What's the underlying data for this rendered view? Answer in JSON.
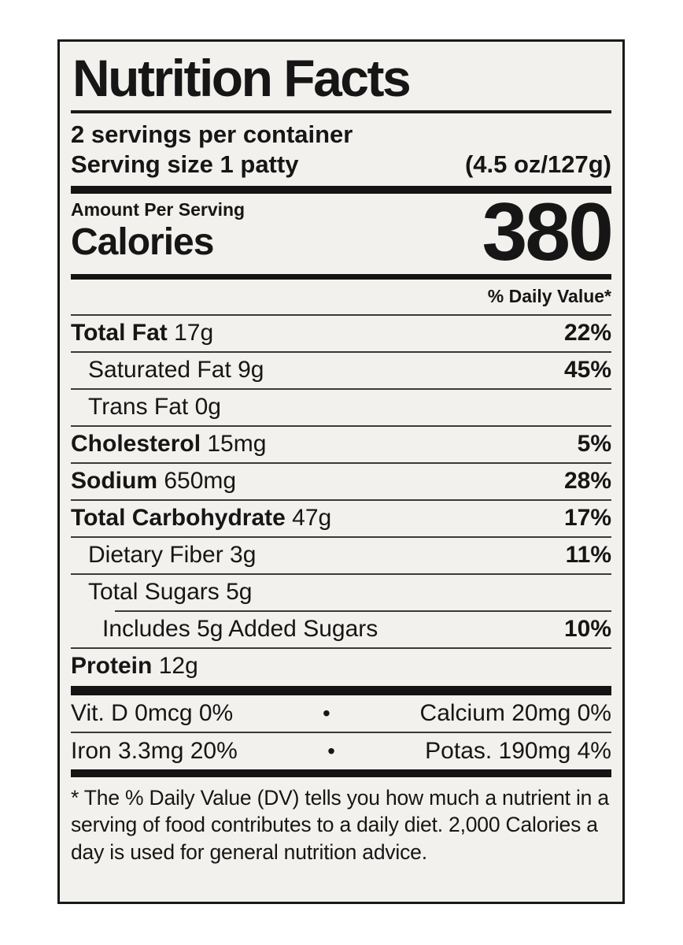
{
  "label": {
    "title": "Nutrition Facts",
    "servings_per_container": "2 servings per container",
    "serving_size_label": "Serving size 1 patty",
    "serving_size_weight": "(4.5 oz/127g)",
    "amount_per_serving": "Amount Per Serving",
    "calories_label": "Calories",
    "calories_value": "380",
    "daily_value_header": "% Daily Value*",
    "rows": [
      {
        "bold": "Total Fat",
        "rest": " 17g",
        "dv": "22%"
      },
      {
        "bold": "",
        "rest": "Saturated Fat 9g",
        "dv": "45%"
      },
      {
        "bold": "",
        "rest": "Trans Fat 0g",
        "dv": ""
      },
      {
        "bold": "Cholesterol",
        "rest": " 15mg",
        "dv": "5%"
      },
      {
        "bold": "Sodium",
        "rest": " 650mg",
        "dv": "28%"
      },
      {
        "bold": "Total Carbohydrate",
        "rest": " 47g",
        "dv": "17%"
      },
      {
        "bold": "",
        "rest": "Dietary Fiber 3g",
        "dv": "11%"
      },
      {
        "bold": "",
        "rest": "Total Sugars 5g",
        "dv": ""
      },
      {
        "bold": "",
        "rest": "Includes 5g Added Sugars",
        "dv": "10%"
      },
      {
        "bold": "Protein",
        "rest": " 12g",
        "dv": ""
      }
    ],
    "micronutrients": [
      {
        "left": "Vit. D 0mcg 0%",
        "bullet": "•",
        "right": "Calcium 20mg 0%"
      },
      {
        "left": "Iron 3.3mg 20%",
        "bullet": "•",
        "right": "Potas. 190mg 4%"
      }
    ],
    "footnote": "* The % Daily Value (DV) tells you how much a nutrient in a serving of food contributes to a daily diet. 2,000 Calories a day is used for general nutrition advice."
  },
  "colors": {
    "text": "#161616",
    "label_background": "#f2f1ee",
    "page_background": "#ffffff",
    "border": "#1a1a1a"
  }
}
